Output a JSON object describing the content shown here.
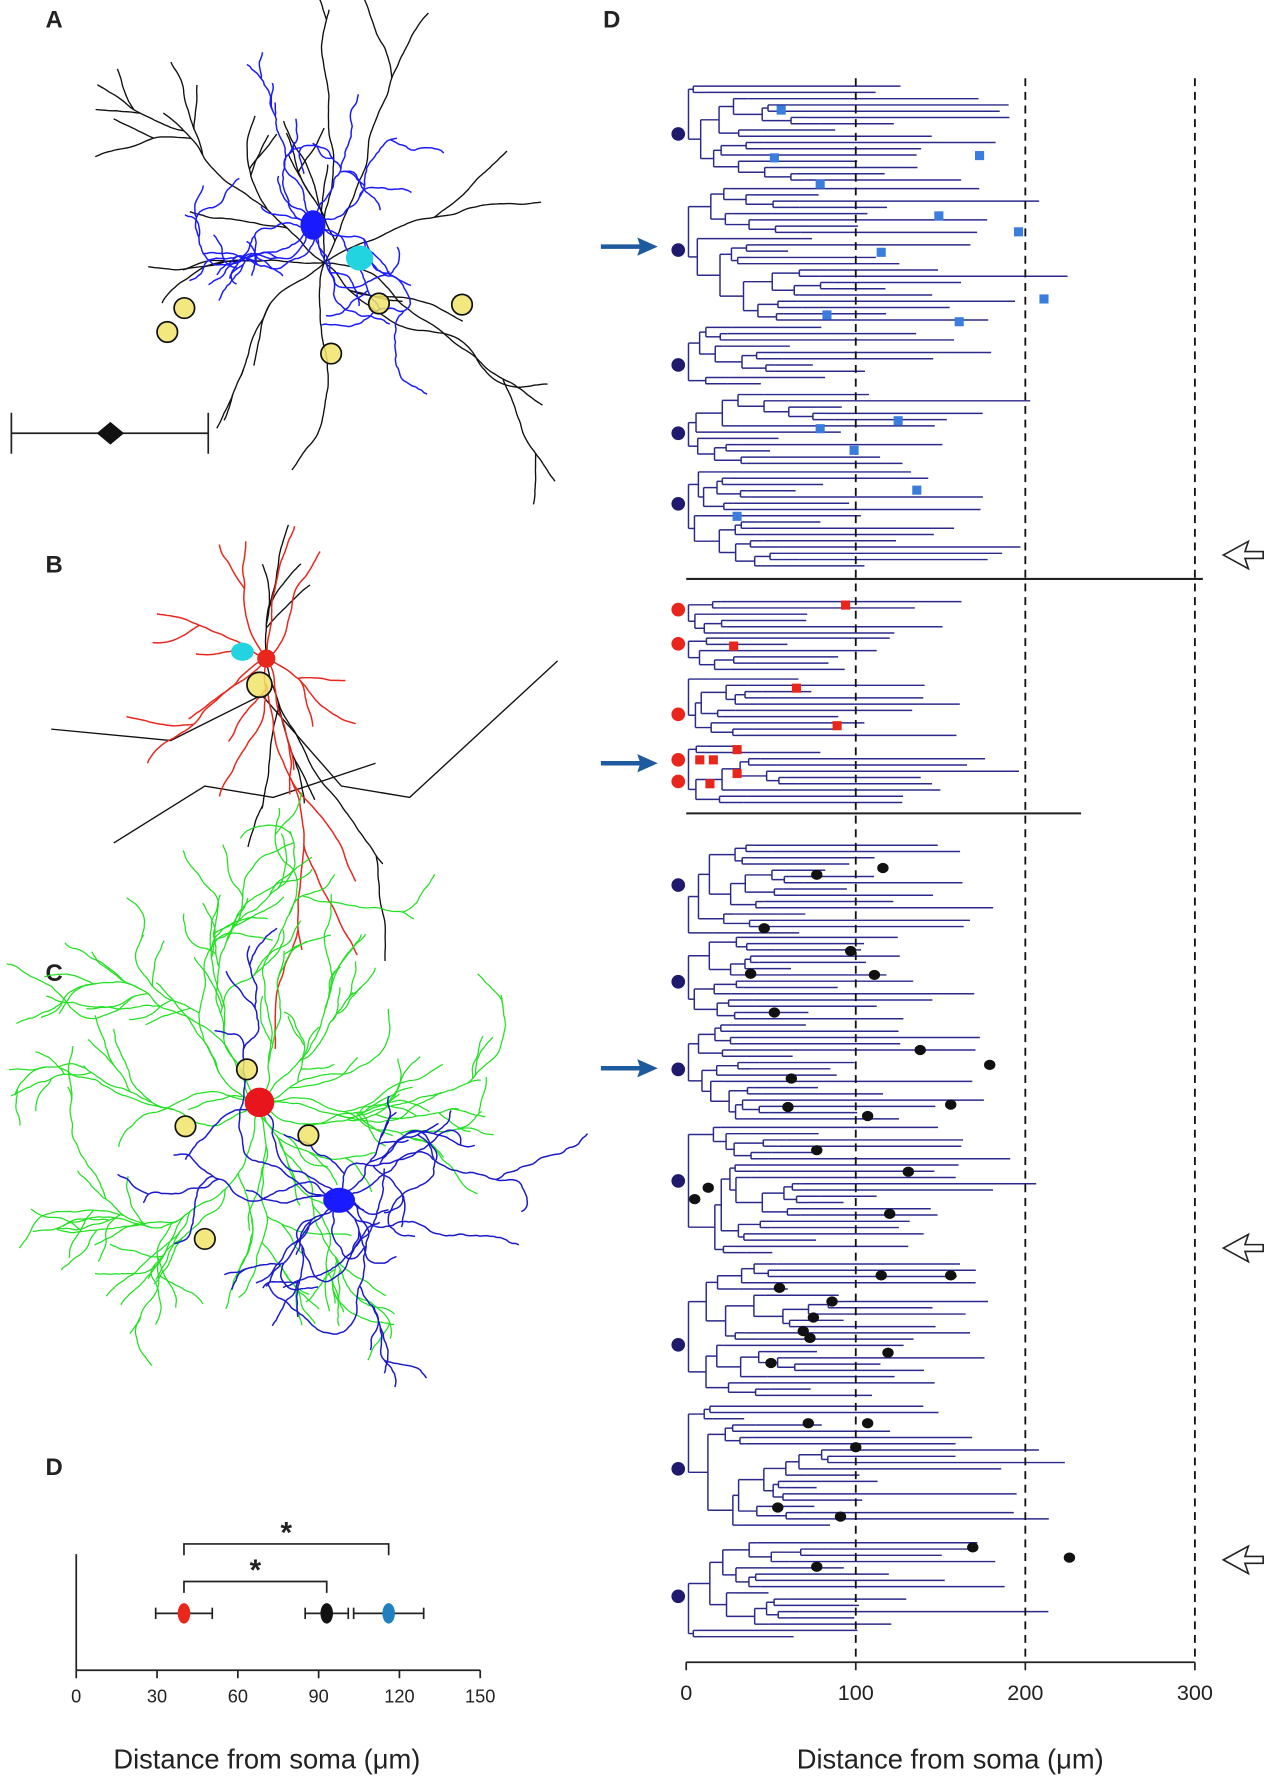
{
  "panel_labels": [
    "A",
    "B",
    "C",
    "D",
    "D"
  ],
  "chart_data": [
    {
      "type": "errorbar",
      "xlabel": "Distance from soma (μm)",
      "xlim": [
        0,
        150
      ],
      "xticks": [
        0,
        30,
        60,
        90,
        120,
        150
      ],
      "series": [
        {
          "color": "#e8261c",
          "values": [
            40
          ],
          "errors": [
            10.5
          ]
        },
        {
          "color": "#111111",
          "values": [
            93
          ],
          "errors": [
            8
          ]
        },
        {
          "color": "#1f7fbf",
          "values": [
            116
          ],
          "errors": [
            13
          ]
        }
      ],
      "annotations": [
        "*",
        "*"
      ]
    },
    {
      "type": "dendrogram",
      "xlabel": "Distance from soma (μm)",
      "xlim": [
        0,
        300
      ],
      "xticks": [
        0,
        100,
        200,
        300
      ],
      "series": [
        {
          "color": "#3b7ddd",
          "marker": "square",
          "values": [
            56,
            173,
            52,
            79,
            149,
            196,
            115,
            211,
            83,
            161,
            125,
            79,
            99,
            136,
            30
          ]
        },
        {
          "color": "#e8261c",
          "marker": "square",
          "values": [
            94,
            28,
            65,
            89,
            30,
            8,
            16,
            30,
            14
          ]
        },
        {
          "color": "#111111",
          "marker": "circle",
          "values": [
            116,
            77,
            46,
            97,
            38,
            111,
            52,
            138,
            179,
            62,
            156,
            60,
            107,
            77,
            131,
            13,
            5,
            120,
            115,
            156,
            55,
            86,
            75,
            69,
            73,
            119,
            50,
            72,
            107,
            100,
            54,
            91,
            169,
            226,
            77
          ]
        }
      ]
    }
  ]
}
